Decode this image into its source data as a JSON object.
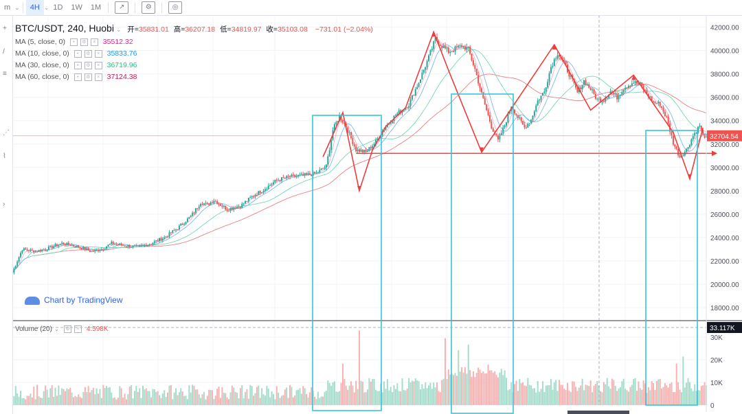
{
  "toolbar": {
    "items": [
      "m",
      "4H",
      "1D",
      "1W",
      "1M"
    ],
    "active": "4H",
    "icons": [
      "chart-style-icon",
      "settings-icon",
      "screenshot-icon"
    ]
  },
  "legend": {
    "symbol": "BTC/USDT, 240, Huobi",
    "open_label": "开=",
    "open": "35831.01",
    "high_label": "高=",
    "high": "36207.18",
    "low_label": "低=",
    "low": "34819.97",
    "close_label": "收=",
    "close": "35103.08",
    "change": "−731.01 (−2.04%)",
    "ma": [
      {
        "label": "MA (5, close, 0)",
        "value": "35512.32",
        "color": "#e91e8c"
      },
      {
        "label": "MA (10, close, 0)",
        "value": "35833.76",
        "color": "#2196f3"
      },
      {
        "label": "MA (30, close, 0)",
        "value": "36719.96",
        "color": "#26c281"
      },
      {
        "label": "MA (60, close, 0)",
        "value": "37124.38",
        "color": "#c2185b"
      }
    ]
  },
  "watermark": "Chart by TradingView",
  "volume_legend": {
    "label": "Volume (20)",
    "value": "4.598K"
  },
  "price_label": "32704.54",
  "volume_label": "33.117K",
  "colors": {
    "up": "#26a69a",
    "down": "#ef5350",
    "annotation": "#ef3b3b",
    "box": "#33c6d9",
    "vol_up": "#a5dccb",
    "vol_down": "#f7b2b2"
  },
  "chart_data": {
    "type": "candlestick",
    "title": "BTC/USDT, 240, Huobi",
    "price_axis": {
      "ticks": [
        18000,
        20000,
        22000,
        24000,
        26000,
        28000,
        30000,
        32000,
        34000,
        36000,
        38000,
        40000,
        42000
      ],
      "labels": [
        "18000.00",
        "20000.00",
        "22000.00",
        "24000.00",
        "26000.00",
        "28000.00",
        "30000.00",
        "32000.00",
        "34000.00",
        "36000.00",
        "38000.00",
        "40000.00",
        "42000.00"
      ],
      "range": [
        17000,
        42800
      ]
    },
    "volume_axis": {
      "ticks": [
        0,
        10000,
        20000,
        30000
      ],
      "labels": [
        "0",
        "10K",
        "20K",
        "30K"
      ],
      "range": [
        0,
        34000
      ]
    },
    "close_path": [
      [
        0,
        21000
      ],
      [
        6,
        23000
      ],
      [
        14,
        22800
      ],
      [
        22,
        23100
      ],
      [
        30,
        23500
      ],
      [
        40,
        23200
      ],
      [
        48,
        22800
      ],
      [
        54,
        23000
      ],
      [
        60,
        23500
      ],
      [
        68,
        23300
      ],
      [
        76,
        23200
      ],
      [
        84,
        23500
      ],
      [
        92,
        24000
      ],
      [
        100,
        24800
      ],
      [
        108,
        25800
      ],
      [
        114,
        27000
      ],
      [
        118,
        26800
      ],
      [
        122,
        27200
      ],
      [
        130,
        26400
      ],
      [
        138,
        26700
      ],
      [
        146,
        27600
      ],
      [
        152,
        28100
      ],
      [
        160,
        28900
      ],
      [
        168,
        29200
      ],
      [
        176,
        29300
      ],
      [
        184,
        29500
      ],
      [
        190,
        30100
      ],
      [
        194,
        33200
      ],
      [
        198,
        34400
      ],
      [
        202,
        33500
      ],
      [
        208,
        31500
      ],
      [
        214,
        31300
      ],
      [
        220,
        32200
      ],
      [
        226,
        33500
      ],
      [
        232,
        34500
      ],
      [
        240,
        35400
      ],
      [
        246,
        37300
      ],
      [
        252,
        39400
      ],
      [
        256,
        41000
      ],
      [
        260,
        40400
      ],
      [
        264,
        39900
      ],
      [
        272,
        40400
      ],
      [
        276,
        40100
      ],
      [
        280,
        38400
      ],
      [
        284,
        36300
      ],
      [
        290,
        33500
      ],
      [
        294,
        32300
      ],
      [
        298,
        33600
      ],
      [
        302,
        35300
      ],
      [
        306,
        34300
      ],
      [
        310,
        33400
      ],
      [
        314,
        34100
      ],
      [
        318,
        35700
      ],
      [
        322,
        36500
      ],
      [
        326,
        38600
      ],
      [
        330,
        39800
      ],
      [
        334,
        38900
      ],
      [
        338,
        37700
      ],
      [
        342,
        36400
      ],
      [
        346,
        37400
      ],
      [
        350,
        36700
      ],
      [
        354,
        35800
      ],
      [
        358,
        35800
      ],
      [
        362,
        36500
      ],
      [
        366,
        36000
      ],
      [
        370,
        36800
      ],
      [
        376,
        37300
      ],
      [
        380,
        37100
      ],
      [
        384,
        36300
      ],
      [
        388,
        35600
      ],
      [
        392,
        35400
      ],
      [
        396,
        34200
      ],
      [
        400,
        32100
      ],
      [
        404,
        30900
      ],
      [
        408,
        31500
      ],
      [
        412,
        32700
      ],
      [
        416,
        33600
      ],
      [
        418,
        32700
      ]
    ],
    "annotation_line": {
      "from": [
        208,
        31200
      ],
      "to": [
        425,
        31200
      ]
    },
    "zigzag": [
      [
        188,
        30900
      ],
      [
        200,
        34700
      ],
      [
        210,
        28000
      ],
      [
        218,
        31500
      ],
      [
        226,
        33500
      ],
      [
        238,
        35100
      ],
      [
        255,
        41600
      ],
      [
        264,
        38300
      ],
      [
        284,
        31300
      ],
      [
        300,
        34600
      ],
      [
        328,
        40500
      ],
      [
        350,
        34900
      ],
      [
        376,
        37900
      ],
      [
        400,
        33000
      ],
      [
        410,
        29000
      ],
      [
        418,
        33400
      ]
    ],
    "volumes_note": "volume bars per candle, up = green, down = red"
  }
}
